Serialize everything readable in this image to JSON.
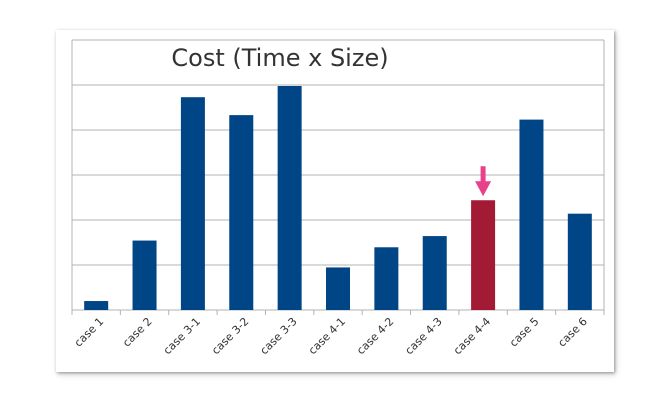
{
  "chart_data": {
    "type": "bar",
    "title": "Cost (Time x Size)",
    "categories": [
      "case 1",
      "case 2",
      "case 3-1",
      "case 3-2",
      "case 3-3",
      "case 4-1",
      "case 4-2",
      "case 4-3",
      "case 4-4",
      "case 5",
      "case 6"
    ],
    "values": [
      0.2,
      1.55,
      4.75,
      4.35,
      5.0,
      0.95,
      1.4,
      1.65,
      2.45,
      4.25,
      2.15
    ],
    "ylim": [
      0,
      5
    ],
    "y_gridlines": 5,
    "grid": true,
    "legend": "none",
    "xlabel": "",
    "ylabel": "",
    "highlight": {
      "category": "case 4-4",
      "marker": "arrow-down-icon"
    },
    "colors": {
      "bar": "#004586",
      "highlight_bar": "#A31A35",
      "arrow": "#E8418A",
      "grid": "#B3B3B3"
    }
  }
}
